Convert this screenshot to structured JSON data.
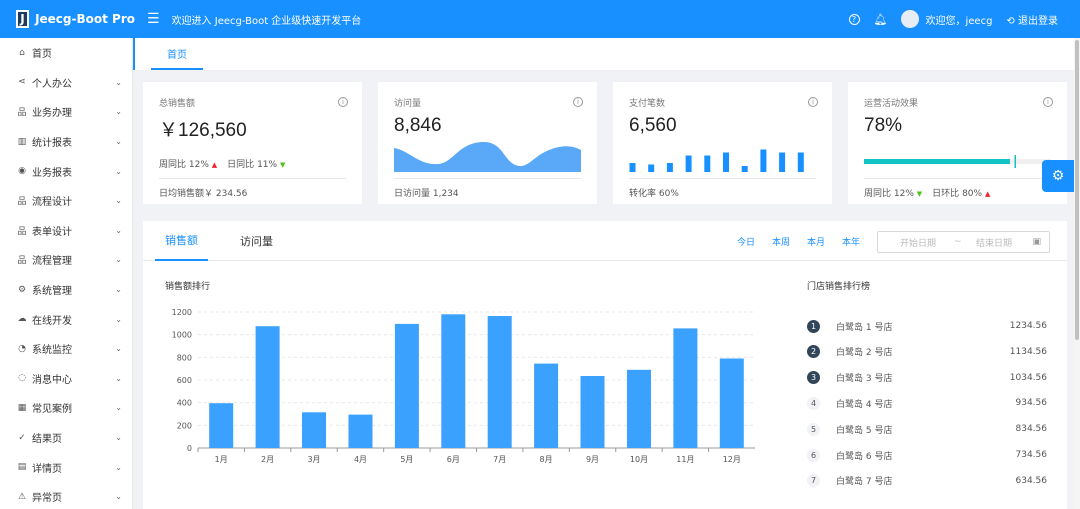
{
  "header": {
    "logo_letter": "J",
    "app_name": "Jeecg-Boot Pro",
    "welcome": "欢迎进入 Jeecg-Boot 企业级快速开发平台",
    "user_greeting": "欢迎您，jeecg",
    "logout": "退出登录"
  },
  "sidebar": {
    "items": [
      {
        "label": "首页",
        "icon": "home-icon",
        "glyph": "⌂",
        "chevron": false
      },
      {
        "label": "个人办公",
        "icon": "share-icon",
        "glyph": "⋖",
        "chevron": true
      },
      {
        "label": "业务办理",
        "icon": "cluster-icon",
        "glyph": "品",
        "chevron": true
      },
      {
        "label": "统计报表",
        "icon": "bar-chart-icon",
        "glyph": "▥",
        "chevron": true
      },
      {
        "label": "业务报表",
        "icon": "broadcast-icon",
        "glyph": "◉",
        "chevron": true
      },
      {
        "label": "流程设计",
        "icon": "cluster-icon",
        "glyph": "品",
        "chevron": true
      },
      {
        "label": "表单设计",
        "icon": "apartment-icon",
        "glyph": "品",
        "chevron": true
      },
      {
        "label": "流程管理",
        "icon": "cluster-icon",
        "glyph": "品",
        "chevron": true
      },
      {
        "label": "系统管理",
        "icon": "setting-icon",
        "glyph": "⚙",
        "chevron": true
      },
      {
        "label": "在线开发",
        "icon": "cloud-icon",
        "glyph": "☁",
        "chevron": true
      },
      {
        "label": "系统监控",
        "icon": "dashboard-icon",
        "glyph": "◔",
        "chevron": true
      },
      {
        "label": "消息中心",
        "icon": "message-icon",
        "glyph": "◌",
        "chevron": true
      },
      {
        "label": "常见案例",
        "icon": "qrcode-icon",
        "glyph": "▦",
        "chevron": true
      },
      {
        "label": "结果页",
        "icon": "check-circle-icon",
        "glyph": "✓",
        "chevron": true
      },
      {
        "label": "详情页",
        "icon": "profile-icon",
        "glyph": "▤",
        "chevron": true
      },
      {
        "label": "异常页",
        "icon": "warning-icon",
        "glyph": "⚠",
        "chevron": true
      }
    ]
  },
  "tabs": {
    "home": "首页"
  },
  "cards": [
    {
      "title": "总销售额",
      "value": "￥126,560",
      "sub1_label": "周同比",
      "sub1_value": "12%",
      "sub2_label": "日同比",
      "sub2_value": "11%",
      "footer": "日均销售额￥ 234.56"
    },
    {
      "title": "访问量",
      "value": "8,846",
      "footer": "日访问量 1,234"
    },
    {
      "title": "支付笔数",
      "value": "6,560",
      "footer": "转化率 60%",
      "bars": [
        0.3,
        0.25,
        0.3,
        0.55,
        0.55,
        0.65,
        0.2,
        0.75,
        0.65,
        0.65
      ]
    },
    {
      "title": "运营活动效果",
      "value": "78%",
      "progress": 0.78,
      "sub1_label": "周同比",
      "sub1_value": "12%",
      "sub2_label": "日环比",
      "sub2_value": "80%"
    }
  ],
  "panel": {
    "tabs": [
      "销售额",
      "访问量"
    ],
    "periods": [
      "今日",
      "本周",
      "本月",
      "本年"
    ],
    "date_start": "开始日期",
    "date_tilde": "~",
    "date_end": "结束日期",
    "chart_title": "销售额排行",
    "rank_title": "门店销售排行榜",
    "ranking": [
      {
        "rank": "1",
        "name": "白鹭岛 1 号店",
        "value": "1234.56"
      },
      {
        "rank": "2",
        "name": "白鹭岛 2 号店",
        "value": "1134.56"
      },
      {
        "rank": "3",
        "name": "白鹭岛 3 号店",
        "value": "1034.56"
      },
      {
        "rank": "4",
        "name": "白鹭岛 4 号店",
        "value": "934.56"
      },
      {
        "rank": "5",
        "name": "白鹭岛 5 号店",
        "value": "834.56"
      },
      {
        "rank": "6",
        "name": "白鹭岛 6 号店",
        "value": "734.56"
      },
      {
        "rank": "7",
        "name": "白鹭岛 7 号店",
        "value": "634.56"
      }
    ]
  },
  "colors": {
    "primary": "#1890ff",
    "progress": "#13c2c2",
    "rank_dark": "#314659"
  },
  "chart_data": {
    "type": "bar",
    "title": "销售额排行",
    "categories": [
      "1月",
      "2月",
      "3月",
      "4月",
      "5月",
      "6月",
      "7月",
      "8月",
      "9月",
      "10月",
      "11月",
      "12月"
    ],
    "values": [
      395,
      1075,
      315,
      295,
      1095,
      1180,
      1165,
      745,
      635,
      690,
      1055,
      790
    ],
    "ylim": [
      0,
      1200
    ],
    "yticks": [
      0,
      200,
      400,
      600,
      800,
      1000,
      1200
    ],
    "grid": true
  }
}
